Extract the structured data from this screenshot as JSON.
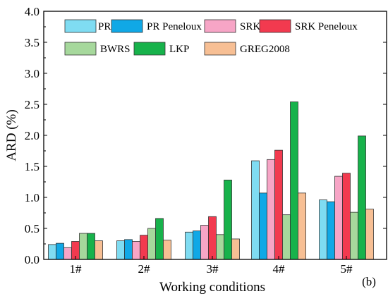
{
  "chart_data": {
    "type": "bar",
    "xlabel": "Working conditions",
    "ylabel": "ARD (%)",
    "panel_label": "(b)",
    "ylim": [
      0,
      4.0
    ],
    "yticks": [
      "0.0",
      "0.5",
      "1.0",
      "1.5",
      "2.0",
      "2.5",
      "3.0",
      "3.5",
      "4.0"
    ],
    "categories": [
      "1#",
      "2#",
      "3#",
      "4#",
      "5#"
    ],
    "legend_position": "top-inside",
    "grid": false,
    "series": [
      {
        "name": "PR",
        "color": "#7fdcf2",
        "values": [
          0.24,
          0.3,
          0.44,
          1.59,
          0.96
        ]
      },
      {
        "name": "PR Peneloux",
        "color": "#10a8e6",
        "values": [
          0.26,
          0.32,
          0.46,
          1.07,
          0.93
        ]
      },
      {
        "name": "SRK",
        "color": "#f7a5c6",
        "values": [
          0.19,
          0.29,
          0.55,
          1.61,
          1.34
        ]
      },
      {
        "name": "SRK Peneloux",
        "color": "#f23a4f",
        "values": [
          0.29,
          0.39,
          0.69,
          1.76,
          1.39
        ]
      },
      {
        "name": "BWRS",
        "color": "#a6d89c",
        "values": [
          0.42,
          0.5,
          0.4,
          0.72,
          0.76
        ]
      },
      {
        "name": "LKP",
        "color": "#17b24b",
        "values": [
          0.42,
          0.66,
          1.28,
          2.54,
          1.99
        ]
      },
      {
        "name": "GREG2008",
        "color": "#f7bf94",
        "values": [
          0.3,
          0.31,
          0.33,
          1.07,
          0.81
        ]
      }
    ]
  }
}
